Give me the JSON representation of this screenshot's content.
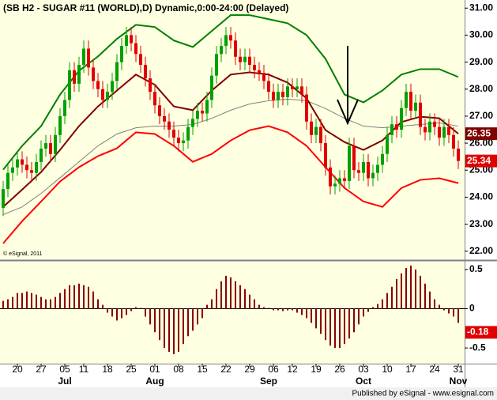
{
  "chart_data": [
    {
      "type": "candlestick",
      "title": "(SB H2 - SUGAR #11 (WORLD),D) Dynamic,0:00-24:00 (Delayed)",
      "watermark": "© eSignal, 2011",
      "up_color": "#00a000",
      "down_color": "#e00000",
      "ylim": [
        21.7,
        31.3
      ],
      "yticks": [
        {
          "value": 31,
          "label": "31.00"
        },
        {
          "value": 30,
          "label": "30.00"
        },
        {
          "value": 29,
          "label": "29.00"
        },
        {
          "value": 28,
          "label": "28.00"
        },
        {
          "value": 27,
          "label": "27.00"
        },
        {
          "value": 26,
          "label": "26.00"
        },
        {
          "value": 25,
          "label": "25.00"
        },
        {
          "value": 24,
          "label": "24.00"
        },
        {
          "value": 23,
          "label": "23.00"
        },
        {
          "value": 22,
          "label": "22.00"
        }
      ],
      "grid": false,
      "open": [
        23.6,
        24.3,
        24.9,
        25.1,
        25.4,
        25.2,
        25.0,
        24.9,
        25.3,
        25.8,
        26.0,
        25.6,
        26.3,
        27.0,
        27.6,
        28.7,
        28.2,
        28.9,
        29.5,
        28.8,
        28.3,
        28.0,
        27.6,
        27.9,
        28.3,
        29.0,
        29.6,
        30.0,
        29.7,
        29.3,
        28.9,
        28.4,
        27.9,
        27.4,
        27.0,
        26.8,
        26.5,
        26.2,
        26.0,
        26.1,
        26.6,
        26.9,
        27.2,
        27.1,
        27.6,
        28.5,
        29.3,
        29.6,
        30.0,
        29.8,
        29.2,
        29.0,
        29.2,
        28.9,
        28.7,
        28.6,
        28.3,
        27.9,
        27.6,
        27.9,
        27.7,
        28.1,
        28.0,
        28.1,
        27.8,
        26.8,
        26.3,
        26.6,
        26.0,
        25.1,
        24.4,
        24.5,
        24.7,
        24.6,
        25.9,
        25.0,
        24.9,
        25.3,
        24.7,
        24.9,
        25.2,
        25.6,
        26.3,
        26.7,
        26.5,
        27.3,
        27.9,
        27.2,
        27.5,
        26.6,
        26.4,
        26.8,
        26.6,
        26.2,
        26.6,
        26.3,
        25.8
      ],
      "high": [
        24.6,
        25.2,
        25.4,
        25.7,
        25.7,
        25.5,
        25.3,
        25.6,
        26.1,
        26.3,
        26.3,
        26.6,
        27.3,
        27.9,
        29.0,
        29.0,
        29.2,
        29.8,
        29.8,
        29.1,
        28.6,
        28.3,
        28.2,
        28.6,
        29.3,
        29.9,
        30.3,
        30.3,
        30.0,
        29.6,
        29.2,
        28.7,
        28.2,
        27.7,
        27.3,
        27.1,
        26.8,
        26.5,
        26.4,
        26.9,
        27.2,
        27.5,
        27.5,
        27.9,
        28.8,
        29.6,
        29.9,
        30.3,
        30.3,
        30.1,
        29.5,
        29.5,
        29.5,
        29.2,
        29.0,
        28.9,
        28.6,
        28.2,
        28.2,
        28.2,
        28.4,
        28.4,
        28.4,
        28.4,
        28.1,
        27.1,
        26.9,
        26.9,
        26.3,
        25.4,
        24.8,
        25.0,
        25.0,
        26.2,
        26.2,
        25.3,
        25.6,
        25.6,
        25.2,
        25.5,
        25.9,
        26.6,
        27.0,
        27.0,
        27.6,
        28.2,
        28.2,
        27.8,
        27.8,
        26.9,
        27.1,
        27.1,
        26.9,
        26.9,
        26.9,
        26.6,
        26.1
      ],
      "low": [
        23.3,
        24.0,
        24.6,
        24.8,
        24.9,
        24.7,
        24.6,
        24.6,
        25.0,
        25.5,
        25.3,
        25.3,
        26.0,
        26.7,
        27.3,
        27.9,
        27.9,
        28.6,
        28.5,
        28.0,
        27.7,
        27.3,
        27.3,
        27.6,
        28.0,
        28.7,
        29.3,
        29.4,
        29.0,
        28.6,
        28.1,
        27.6,
        27.1,
        26.7,
        26.5,
        26.2,
        25.9,
        25.7,
        25.7,
        25.8,
        26.3,
        26.6,
        26.8,
        26.8,
        27.3,
        28.2,
        29.0,
        29.3,
        29.5,
        28.9,
        28.7,
        28.7,
        28.6,
        28.4,
        28.3,
        28.0,
        27.6,
        27.3,
        27.3,
        27.4,
        27.4,
        27.7,
        27.7,
        27.5,
        26.5,
        26.0,
        26.0,
        25.7,
        24.8,
        24.1,
        24.1,
        24.2,
        24.3,
        24.3,
        24.7,
        24.6,
        24.6,
        24.4,
        24.4,
        24.6,
        24.9,
        25.3,
        26.0,
        26.2,
        26.2,
        27.0,
        26.9,
        26.9,
        26.3,
        26.1,
        26.1,
        26.3,
        25.9,
        25.9,
        26.0,
        25.5,
        25.04
      ],
      "close": [
        24.3,
        24.9,
        25.1,
        25.4,
        25.2,
        25.0,
        24.9,
        25.3,
        25.8,
        26.0,
        25.6,
        26.3,
        27.0,
        27.6,
        28.7,
        28.2,
        28.9,
        29.5,
        28.8,
        28.3,
        28.0,
        27.6,
        27.9,
        28.3,
        29.0,
        29.6,
        30.0,
        29.7,
        29.3,
        28.9,
        28.4,
        27.9,
        27.4,
        27.0,
        26.8,
        26.5,
        26.2,
        26.0,
        26.1,
        26.6,
        26.9,
        27.2,
        27.1,
        27.6,
        28.5,
        29.3,
        29.6,
        30.0,
        29.8,
        29.2,
        29.0,
        29.2,
        28.9,
        28.7,
        28.6,
        28.3,
        27.9,
        27.6,
        27.9,
        27.7,
        28.1,
        28.0,
        28.1,
        27.8,
        26.8,
        26.3,
        26.6,
        26.0,
        25.1,
        24.4,
        24.5,
        24.7,
        24.6,
        25.9,
        25.0,
        24.9,
        25.3,
        24.7,
        24.9,
        25.2,
        25.6,
        26.3,
        26.7,
        26.5,
        27.3,
        27.9,
        27.2,
        27.5,
        26.6,
        26.4,
        26.8,
        26.6,
        26.2,
        26.6,
        26.3,
        25.8,
        25.34
      ],
      "lines": [
        {
          "color": "#808080",
          "x": [
            0,
            4,
            8,
            12,
            16,
            20,
            24,
            28,
            32,
            36,
            40,
            44,
            48,
            52,
            56,
            60,
            64,
            68,
            72,
            76,
            80,
            84,
            88,
            92,
            96
          ],
          "values": [
            23.35,
            23.64,
            24.14,
            24.72,
            25.31,
            25.9,
            26.34,
            26.57,
            26.63,
            26.63,
            26.69,
            26.92,
            27.22,
            27.45,
            27.57,
            27.63,
            27.57,
            27.28,
            26.92,
            26.63,
            26.57,
            26.63,
            26.69,
            26.75,
            26.63
          ]
        },
        {
          "color": "#800000",
          "x": [
            0,
            4,
            8,
            12,
            16,
            20,
            24,
            28,
            32,
            36,
            40,
            44,
            48,
            52,
            56,
            60,
            64,
            68,
            72,
            76,
            80,
            84,
            88,
            92,
            96
          ],
          "values": [
            23.64,
            24.28,
            24.93,
            25.75,
            26.63,
            27.36,
            27.95,
            28.54,
            28.16,
            27.36,
            27.22,
            27.95,
            28.54,
            28.62,
            28.54,
            28.24,
            27.66,
            26.48,
            26.04,
            25.75,
            26.1,
            26.78,
            26.98,
            26.92,
            26.35
          ]
        },
        {
          "color": "#ff0000",
          "x": [
            0,
            4,
            8,
            12,
            16,
            20,
            24,
            28,
            32,
            36,
            40,
            44,
            48,
            52,
            56,
            60,
            64,
            68,
            72,
            76,
            80,
            84,
            88,
            92,
            96
          ],
          "values": [
            22.29,
            23.11,
            23.84,
            24.58,
            25.11,
            25.52,
            25.81,
            26.4,
            26.34,
            25.9,
            25.31,
            25.6,
            26.1,
            26.48,
            26.63,
            26.4,
            25.9,
            25.11,
            24.34,
            23.84,
            23.64,
            24.34,
            24.64,
            24.7,
            24.52
          ]
        },
        {
          "color": "#008000",
          "x": [
            0,
            4,
            8,
            12,
            16,
            20,
            24,
            28,
            32,
            36,
            40,
            44,
            48,
            52,
            56,
            60,
            64,
            68,
            72,
            76,
            80,
            84,
            88,
            92,
            96
          ],
          "values": [
            25.02,
            25.9,
            26.63,
            27.8,
            28.68,
            29.21,
            29.86,
            30.38,
            30.3,
            29.8,
            29.56,
            30.15,
            30.74,
            30.74,
            30.59,
            30.44,
            30.0,
            29.12,
            27.8,
            27.51,
            27.95,
            28.54,
            28.74,
            28.74,
            28.45
          ]
        }
      ]
    },
    {
      "type": "bar",
      "color": "#8b0000",
      "ylim": [
        -0.7,
        0.6
      ],
      "yticks": [
        0.5,
        0,
        -0.5
      ],
      "categories": [
        null,
        null,
        null,
        "20",
        null,
        null,
        null,
        null,
        "27",
        null,
        null,
        null,
        null,
        "05",
        null,
        null,
        null,
        "11",
        null,
        null,
        null,
        null,
        "18",
        null,
        null,
        null,
        null,
        "25",
        null,
        null,
        null,
        null,
        "01",
        null,
        null,
        null,
        null,
        "08",
        null,
        null,
        null,
        null,
        "15",
        null,
        null,
        null,
        null,
        "22",
        null,
        null,
        null,
        null,
        "29",
        null,
        null,
        null,
        null,
        "06",
        null,
        null,
        null,
        "12",
        null,
        null,
        null,
        null,
        "19",
        null,
        null,
        null,
        null,
        "26",
        null,
        null,
        null,
        null,
        "03",
        null,
        null,
        null,
        null,
        "10",
        null,
        null,
        null,
        null,
        "17",
        null,
        null,
        null,
        null,
        "24",
        null,
        null,
        null,
        null,
        "31"
      ],
      "months": [
        null,
        null,
        null,
        null,
        null,
        null,
        null,
        null,
        null,
        null,
        null,
        null,
        null,
        "Jul",
        null,
        null,
        null,
        null,
        null,
        null,
        null,
        null,
        null,
        null,
        null,
        null,
        null,
        null,
        null,
        null,
        null,
        null,
        "Aug",
        null,
        null,
        null,
        null,
        null,
        null,
        null,
        null,
        null,
        null,
        null,
        null,
        null,
        null,
        null,
        null,
        null,
        null,
        null,
        null,
        null,
        null,
        null,
        "Sep",
        null,
        null,
        null,
        null,
        null,
        null,
        null,
        null,
        null,
        null,
        null,
        null,
        null,
        null,
        null,
        null,
        null,
        null,
        null,
        "Oct",
        null,
        null,
        null,
        null,
        null,
        null,
        null,
        null,
        null,
        null,
        null,
        null,
        null,
        null,
        null,
        null,
        null,
        null,
        null,
        "Nov"
      ],
      "values": [
        0.1,
        0.12,
        0.15,
        0.2,
        0.2,
        0.22,
        0.2,
        0.18,
        0.15,
        0.12,
        0.12,
        0.15,
        0.2,
        0.25,
        0.3,
        0.3,
        0.32,
        0.3,
        0.28,
        0.22,
        0.12,
        0.05,
        -0.05,
        -0.1,
        -0.15,
        -0.12,
        -0.08,
        -0.03,
        0.02,
        0.01,
        -0.1,
        -0.2,
        -0.3,
        -0.4,
        -0.5,
        -0.55,
        -0.58,
        -0.55,
        -0.45,
        -0.35,
        -0.28,
        -0.2,
        -0.12,
        0.05,
        0.12,
        0.25,
        0.35,
        0.42,
        0.4,
        0.35,
        0.3,
        0.25,
        0.18,
        0.12,
        0.05,
        0.02,
        0.01,
        -0.02,
        -0.02,
        -0.03,
        -0.02,
        -0.02,
        -0.05,
        -0.08,
        -0.12,
        -0.18,
        -0.25,
        -0.32,
        -0.4,
        -0.47,
        -0.5,
        -0.5,
        -0.45,
        -0.38,
        -0.3,
        -0.2,
        -0.1,
        -0.04,
        0.02,
        0.06,
        0.12,
        0.2,
        0.28,
        0.38,
        0.45,
        0.52,
        0.55,
        0.5,
        0.42,
        0.32,
        0.22,
        0.12,
        0.05,
        -0.02,
        -0.06,
        -0.1,
        -0.18
      ]
    }
  ],
  "footer": "Published by eSignal - www.esignal.com"
}
